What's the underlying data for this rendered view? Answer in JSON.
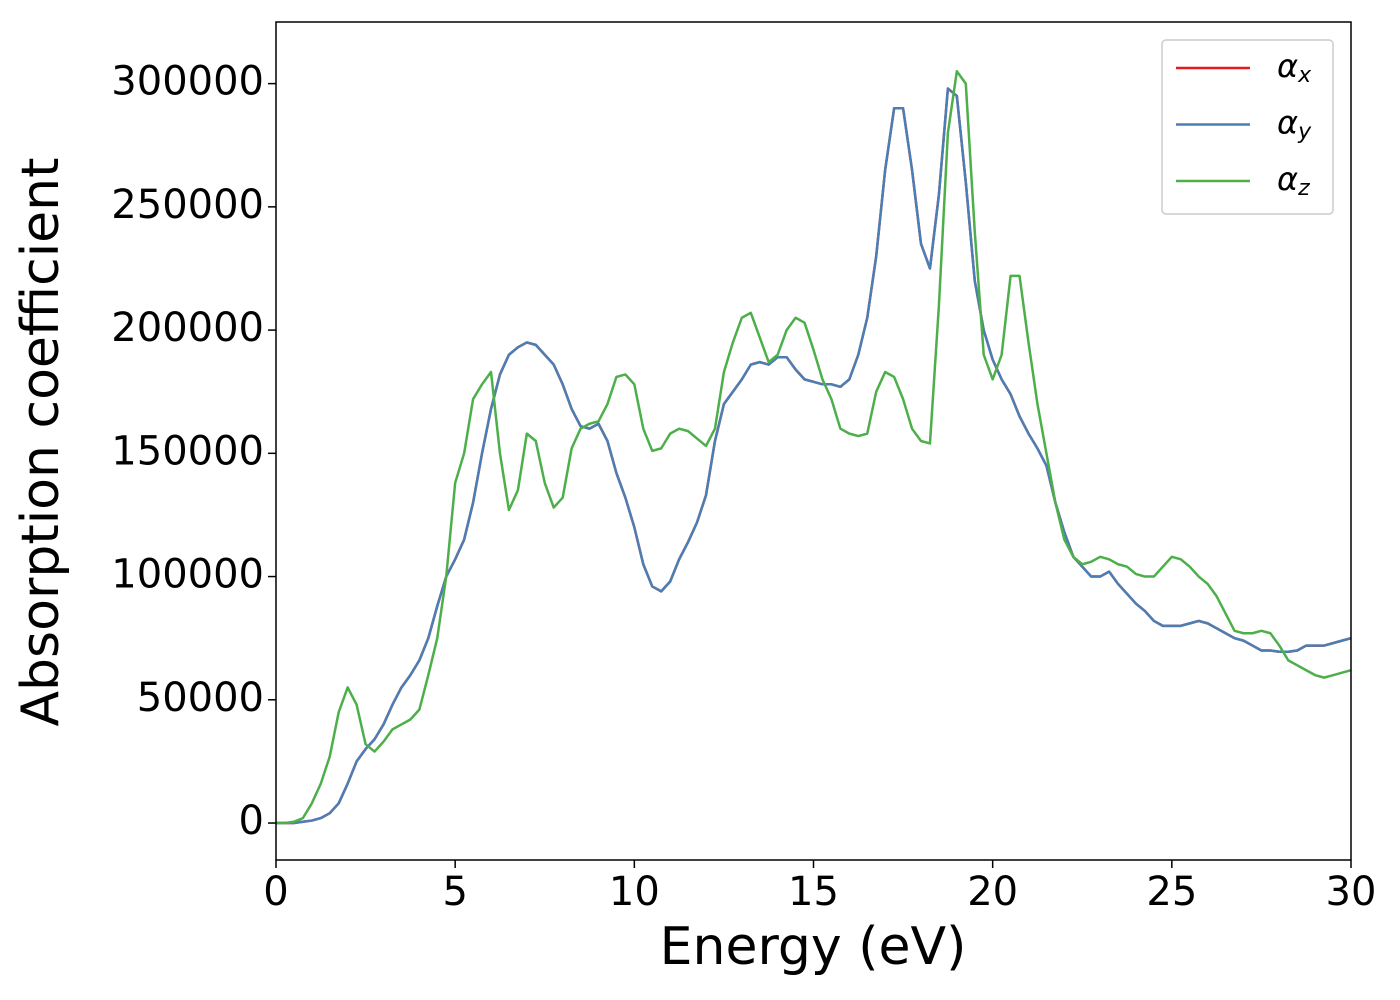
{
  "chart_data": {
    "type": "line",
    "xlabel": "Energy (eV)",
    "ylabel": "Absorption coefficient",
    "x": [
      0,
      0.25,
      0.5,
      0.75,
      1,
      1.25,
      1.5,
      1.75,
      2,
      2.25,
      2.5,
      2.75,
      3,
      3.25,
      3.5,
      3.75,
      4,
      4.25,
      4.5,
      4.75,
      5,
      5.25,
      5.5,
      5.75,
      6,
      6.25,
      6.5,
      6.75,
      7,
      7.25,
      7.5,
      7.75,
      8,
      8.25,
      8.5,
      8.75,
      9,
      9.25,
      9.5,
      9.75,
      10,
      10.25,
      10.5,
      10.75,
      11,
      11.25,
      11.5,
      11.75,
      12,
      12.25,
      12.5,
      12.75,
      13,
      13.25,
      13.5,
      13.75,
      14,
      14.25,
      14.5,
      14.75,
      15,
      15.25,
      15.5,
      15.75,
      16,
      16.25,
      16.5,
      16.75,
      17,
      17.25,
      17.5,
      17.75,
      18,
      18.25,
      18.5,
      18.75,
      19,
      19.25,
      19.5,
      19.75,
      20,
      20.25,
      20.5,
      20.75,
      21,
      21.25,
      21.5,
      21.75,
      22,
      22.25,
      22.5,
      22.75,
      23,
      23.25,
      23.5,
      23.75,
      24,
      24.25,
      24.5,
      24.75,
      25,
      25.25,
      25.5,
      25.75,
      26,
      26.25,
      26.5,
      26.75,
      27,
      27.25,
      27.5,
      27.75,
      28,
      28.25,
      28.5,
      28.75,
      29,
      29.25,
      29.5,
      29.75,
      30
    ],
    "series": [
      {
        "name": "αx",
        "color": "#e41a1c",
        "values": [
          0,
          0,
          0,
          500,
          1000,
          2000,
          4000,
          8000,
          16000,
          25000,
          30000,
          34000,
          40000,
          48000,
          55000,
          60000,
          66000,
          75000,
          88000,
          100000,
          107000,
          115000,
          130000,
          150000,
          168000,
          182000,
          190000,
          193000,
          195000,
          194000,
          190000,
          186000,
          178000,
          168000,
          161000,
          160000,
          162000,
          155000,
          142000,
          132000,
          120000,
          105000,
          96000,
          94000,
          98000,
          107000,
          114000,
          122000,
          133000,
          155000,
          170000,
          175000,
          180000,
          186000,
          187000,
          186000,
          189000,
          189000,
          184000,
          180000,
          179000,
          178000,
          178000,
          177000,
          180000,
          190000,
          205000,
          230000,
          265000,
          290000,
          290000,
          265000,
          235000,
          225000,
          255000,
          298000,
          295000,
          260000,
          220000,
          200000,
          188000,
          180000,
          174000,
          165000,
          158000,
          152000,
          145000,
          130000,
          118000,
          108000,
          104000,
          100000,
          100000,
          102000,
          97000,
          93000,
          89000,
          86000,
          82000,
          80000,
          80000,
          80000,
          81000,
          82000,
          81000,
          79000,
          77000,
          75000,
          74000,
          72000,
          70000,
          70000,
          69500,
          69500,
          70000,
          72000,
          72000,
          72000,
          73000,
          74000,
          75000
        ]
      },
      {
        "name": "αy",
        "color": "#4a7fb5",
        "values": [
          0,
          0,
          0,
          500,
          1000,
          2000,
          4000,
          8000,
          16000,
          25000,
          30000,
          34000,
          40000,
          48000,
          55000,
          60000,
          66000,
          75000,
          88000,
          100000,
          107000,
          115000,
          130000,
          150000,
          168000,
          182000,
          190000,
          193000,
          195000,
          194000,
          190000,
          186000,
          178000,
          168000,
          161000,
          160000,
          162000,
          155000,
          142000,
          132000,
          120000,
          105000,
          96000,
          94000,
          98000,
          107000,
          114000,
          122000,
          133000,
          155000,
          170000,
          175000,
          180000,
          186000,
          187000,
          186000,
          189000,
          189000,
          184000,
          180000,
          179000,
          178000,
          178000,
          177000,
          180000,
          190000,
          205000,
          230000,
          265000,
          290000,
          290000,
          265000,
          235000,
          225000,
          255000,
          298000,
          295000,
          260000,
          220000,
          200000,
          188000,
          180000,
          174000,
          165000,
          158000,
          152000,
          145000,
          130000,
          118000,
          108000,
          104000,
          100000,
          100000,
          102000,
          97000,
          93000,
          89000,
          86000,
          82000,
          80000,
          80000,
          80000,
          81000,
          82000,
          81000,
          79000,
          77000,
          75000,
          74000,
          72000,
          70000,
          70000,
          69500,
          69500,
          70000,
          72000,
          72000,
          72000,
          73000,
          74000,
          75000
        ]
      },
      {
        "name": "αz",
        "color": "#4daf4a",
        "values": [
          0,
          0,
          500,
          2000,
          8000,
          16000,
          27000,
          45000,
          55000,
          48000,
          32000,
          29000,
          33000,
          38000,
          40000,
          42000,
          46000,
          60000,
          75000,
          100000,
          138000,
          150000,
          172000,
          178000,
          183000,
          150000,
          127000,
          135000,
          158000,
          155000,
          138000,
          128000,
          132000,
          152000,
          160000,
          162000,
          163000,
          170000,
          181000,
          182000,
          178000,
          160000,
          151000,
          152000,
          158000,
          160000,
          159000,
          156000,
          153000,
          160000,
          183000,
          195000,
          205000,
          207000,
          197000,
          187000,
          190000,
          200000,
          205000,
          203000,
          192000,
          180000,
          172000,
          160000,
          158000,
          157000,
          158000,
          175000,
          183000,
          181000,
          172000,
          160000,
          155000,
          154000,
          210000,
          280000,
          305000,
          300000,
          240000,
          190000,
          180000,
          190000,
          222000,
          222000,
          195000,
          170000,
          150000,
          130000,
          115000,
          108000,
          105000,
          106000,
          108000,
          107000,
          105000,
          104000,
          101000,
          100000,
          100000,
          104000,
          108000,
          107000,
          104000,
          100000,
          97000,
          92000,
          85000,
          78000,
          77000,
          77000,
          78000,
          77000,
          72000,
          66000,
          64000,
          62000,
          60000,
          59000,
          60000,
          61000,
          62000
        ]
      }
    ],
    "xlim": [
      0,
      30
    ],
    "xticks": [
      0,
      5,
      10,
      15,
      20,
      25,
      30
    ],
    "ylim": [
      -15000,
      325000
    ],
    "yticks": [
      0,
      50000,
      100000,
      150000,
      200000,
      250000,
      300000
    ],
    "legend": "upper right",
    "grid": false
  }
}
